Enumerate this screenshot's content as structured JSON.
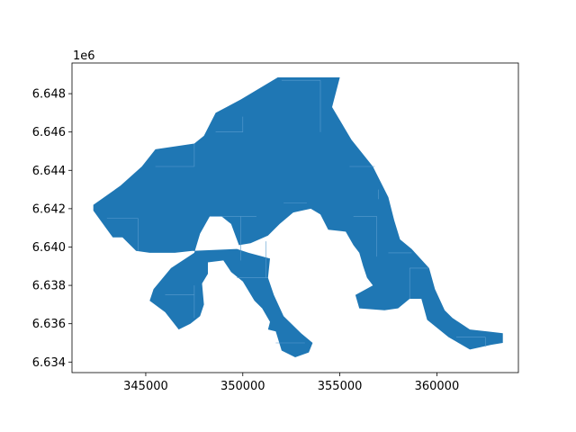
{
  "figure": {
    "y_offset_label": "1e6"
  },
  "colors": {
    "fill": "#1f77b4",
    "internal_lines": "#5a9ccf",
    "axes": "#000000",
    "background": "#ffffff"
  },
  "chart_data": {
    "type": "map",
    "title": "",
    "xlabel": "",
    "ylabel": "",
    "xlim": [
      341200,
      364200
    ],
    "ylim": [
      6633450,
      6649600
    ],
    "x_ticks": [
      345000,
      350000,
      355000,
      360000
    ],
    "x_tick_labels": [
      "345000",
      "350000",
      "355000",
      "360000"
    ],
    "y_ticks": [
      6634000,
      6636000,
      6638000,
      6640000,
      6642000,
      6644000,
      6646000,
      6648000
    ],
    "y_tick_labels": [
      "6.634",
      "6.636",
      "6.638",
      "6.640",
      "6.642",
      "6.644",
      "6.646",
      "6.648"
    ],
    "y_offset": "1e6",
    "grid": false,
    "polygon_outline": [
      [
        342300,
        6642200
      ],
      [
        343700,
        6643200
      ],
      [
        344800,
        6644200
      ],
      [
        345500,
        6645100
      ],
      [
        347500,
        6645400
      ],
      [
        348000,
        6645800
      ],
      [
        348600,
        6647000
      ],
      [
        349900,
        6647700
      ],
      [
        351800,
        6648850
      ],
      [
        355000,
        6648850
      ],
      [
        354600,
        6647300
      ],
      [
        355600,
        6645600
      ],
      [
        356700,
        6644200
      ],
      [
        357500,
        6642600
      ],
      [
        357800,
        6641400
      ],
      [
        358100,
        6640400
      ],
      [
        358700,
        6639900
      ],
      [
        359600,
        6638900
      ],
      [
        359900,
        6637800
      ],
      [
        360400,
        6636700
      ],
      [
        360800,
        6636300
      ],
      [
        361700,
        6635700
      ],
      [
        362600,
        6635600
      ],
      [
        363400,
        6635500
      ],
      [
        363400,
        6635000
      ],
      [
        362800,
        6634900
      ],
      [
        361700,
        6634650
      ],
      [
        360600,
        6635300
      ],
      [
        359500,
        6636200
      ],
      [
        359200,
        6637300
      ],
      [
        358600,
        6637300
      ],
      [
        358000,
        6636800
      ],
      [
        357300,
        6636700
      ],
      [
        356000,
        6636800
      ],
      [
        355800,
        6637500
      ],
      [
        356700,
        6638000
      ],
      [
        356400,
        6638400
      ],
      [
        356200,
        6639000
      ],
      [
        356000,
        6639700
      ],
      [
        355700,
        6640100
      ],
      [
        355300,
        6640800
      ],
      [
        354400,
        6640900
      ],
      [
        354000,
        6641700
      ],
      [
        353500,
        6642000
      ],
      [
        352600,
        6641800
      ],
      [
        351900,
        6641200
      ],
      [
        351300,
        6640600
      ],
      [
        350400,
        6640200
      ],
      [
        349800,
        6640100
      ],
      [
        349400,
        6641200
      ],
      [
        348900,
        6641600
      ],
      [
        348300,
        6641600
      ],
      [
        347800,
        6640700
      ],
      [
        347500,
        6639700
      ],
      [
        346300,
        6638900
      ],
      [
        345400,
        6637800
      ],
      [
        345200,
        6637200
      ],
      [
        346000,
        6636600
      ],
      [
        346700,
        6635700
      ],
      [
        347300,
        6636000
      ],
      [
        347800,
        6636400
      ],
      [
        348000,
        6637000
      ],
      [
        347900,
        6638100
      ],
      [
        348200,
        6638600
      ],
      [
        348200,
        6639200
      ],
      [
        349000,
        6639300
      ],
      [
        349400,
        6638700
      ],
      [
        350000,
        6638200
      ],
      [
        350600,
        6637200
      ],
      [
        351000,
        6636800
      ],
      [
        351400,
        6636100
      ],
      [
        351300,
        6635700
      ],
      [
        351700,
        6635600
      ],
      [
        352000,
        6634600
      ],
      [
        352700,
        6634250
      ],
      [
        353400,
        6634500
      ],
      [
        353600,
        6635000
      ],
      [
        353000,
        6635500
      ],
      [
        352100,
        6636400
      ],
      [
        351600,
        6637500
      ],
      [
        351300,
        6638400
      ],
      [
        351400,
        6639400
      ],
      [
        350300,
        6639700
      ],
      [
        349700,
        6639900
      ],
      [
        347400,
        6639800
      ],
      [
        346500,
        6639700
      ],
      [
        345200,
        6639700
      ],
      [
        344500,
        6639800
      ],
      [
        343800,
        6640500
      ],
      [
        343300,
        6640500
      ],
      [
        342300,
        6641900
      ]
    ]
  }
}
